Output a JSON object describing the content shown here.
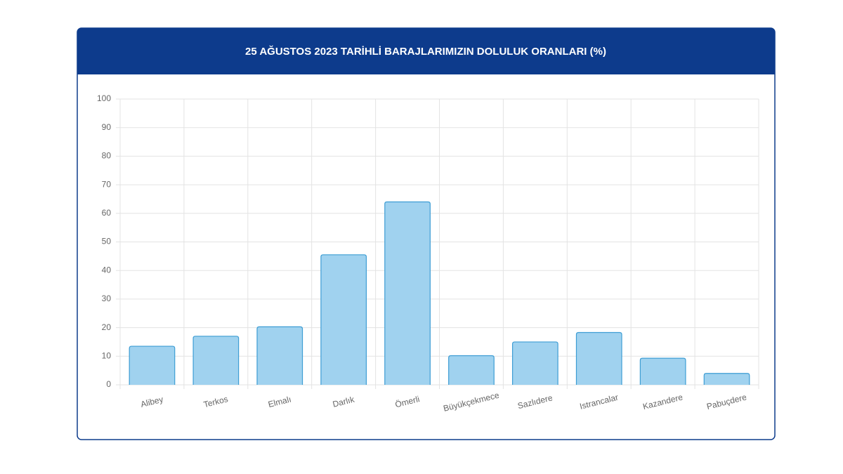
{
  "chart_data": {
    "type": "bar",
    "title": "25 AĞUSTOS 2023 TARİHLİ BARAJLARIMIZIN DOLULUK ORANLARI (%)",
    "categories": [
      "Alibey",
      "Terkos",
      "Elmalı",
      "Darlık",
      "Ömerli",
      "Büyükçekmece",
      "Sazlıdere",
      "Istrancalar",
      "Kazandere",
      "Pabuçdere"
    ],
    "values": [
      13.5,
      17,
      20.3,
      45.5,
      64,
      10.2,
      15,
      18.3,
      9.3,
      4
    ],
    "color": "#a0d2ef",
    "ylim": [
      0,
      100
    ],
    "yticks": [
      0,
      10,
      20,
      30,
      40,
      50,
      60,
      70,
      80,
      90,
      100
    ],
    "grid": true
  }
}
